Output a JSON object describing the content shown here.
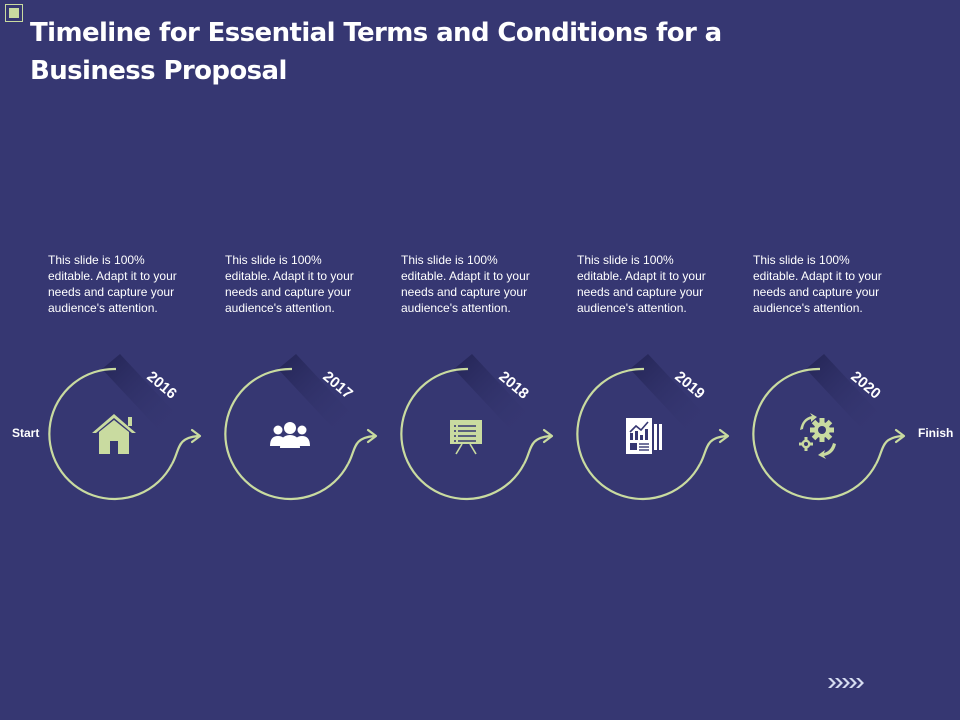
{
  "title": "Timeline for Essential Terms and Conditions for a Business Proposal",
  "start_label": "Start",
  "finish_label": "Finish",
  "accent_color": "#c9dba0",
  "background_color": "#363772",
  "steps": [
    {
      "year": "2016",
      "text": "This slide is 100% editable. Adapt it to your needs and capture your audience's attention.",
      "icon": "home-icon"
    },
    {
      "year": "2017",
      "text": "This slide is 100% editable. Adapt it to your needs and capture your audience's attention.",
      "icon": "team-icon"
    },
    {
      "year": "2018",
      "text": "This slide is 100% editable. Adapt it to your needs and capture your audience's attention.",
      "icon": "presentation-board-icon"
    },
    {
      "year": "2019",
      "text": "This slide is 100% editable. Adapt it to your needs and capture your audience's attention.",
      "icon": "report-icon"
    },
    {
      "year": "2020",
      "text": "This slide is 100% editable. Adapt it to your needs and capture your audience's attention.",
      "icon": "gears-icon"
    }
  ],
  "navigation_icon": "next-chevrons-icon"
}
